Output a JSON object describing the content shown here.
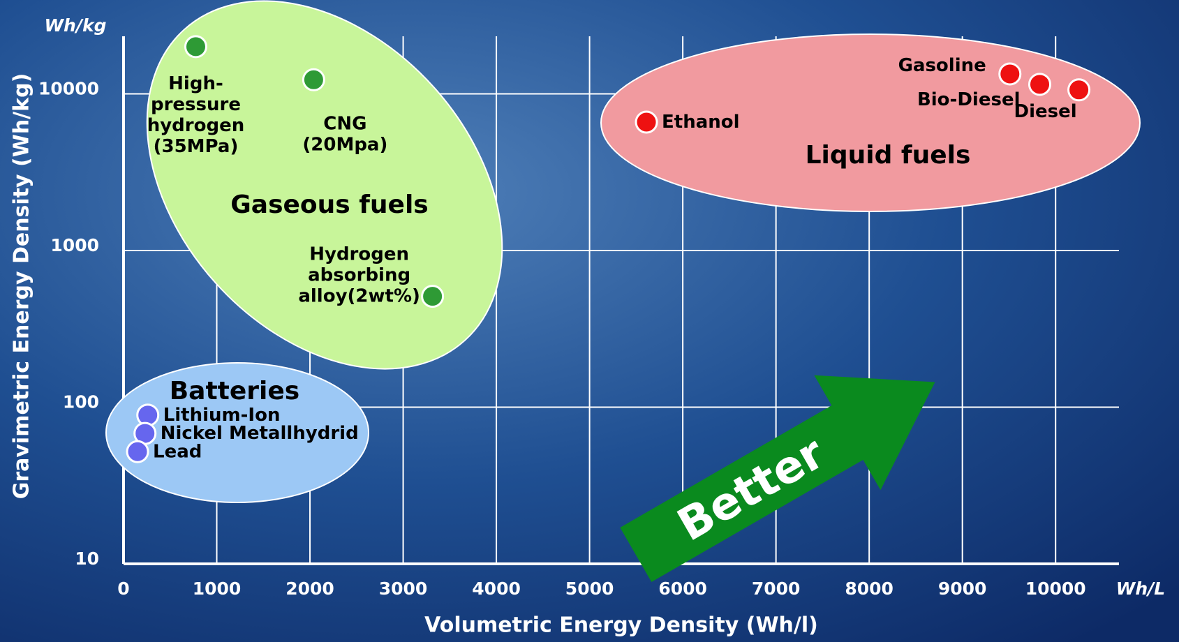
{
  "chart_data": {
    "type": "scatter",
    "x_label": "Volumetric Energy Density (Wh/l)",
    "y_label": "Gravimetric Energy Density (Wh/kg)",
    "annotations": [
      "Wh/kg",
      "Wh/L",
      "Better"
    ],
    "xlim": [
      0,
      10680
    ],
    "xticks": [
      0,
      1000,
      2000,
      3000,
      4000,
      5000,
      6000,
      7000,
      8000,
      9000,
      10000
    ],
    "ylim": [
      10,
      23300
    ],
    "yticks": [
      10,
      100,
      1000,
      10000
    ],
    "y_log_scale": true,
    "grid": true,
    "series": [
      {
        "name": "Gaseous fuels",
        "color": "#2e9a35",
        "x": [
          775,
          2040,
          3315
        ],
        "values": [
          20000,
          12300,
          510
        ],
        "labels": [
          "High-\npressure\nhydrogen\n(35MPa)",
          "CNG\n(20Mpa)",
          "Hydrogen\nabsorbing\nalloy(2wt%)"
        ]
      },
      {
        "name": "Liquid fuels",
        "color": "#ee1111",
        "x": [
          5610,
          9510,
          9830,
          10250
        ],
        "values": [
          6600,
          13400,
          11500,
          10600
        ],
        "labels": [
          "Ethanol",
          "Gasoline",
          "Bio-Diesel",
          "Diesel"
        ]
      },
      {
        "name": "Batteries",
        "color": "#6666ee",
        "x": [
          260,
          230,
          150
        ],
        "values": [
          89,
          68,
          52
        ],
        "labels": [
          "Lithium-Ion",
          "Nickel Metallhydrid",
          "Lead"
        ]
      }
    ]
  }
}
